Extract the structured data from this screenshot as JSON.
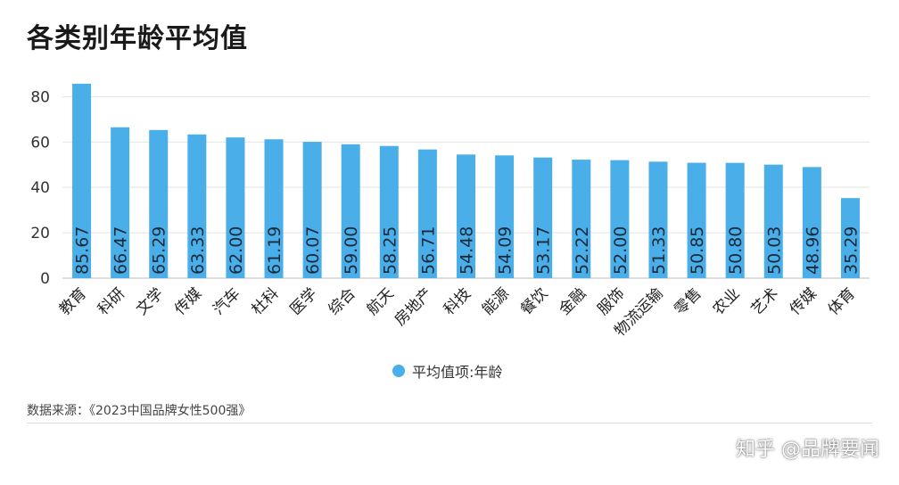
{
  "title": "各类别年龄平均值",
  "legend_label": "平均值项:年龄",
  "source": "数据来源：《2023中国品牌女性500强》",
  "watermark": "知乎 @品牌要闻",
  "colors": {
    "bar": "#4aaee9",
    "grid": "#e3e3e3",
    "axis": "#bdbdbd"
  },
  "chart_data": {
    "type": "bar",
    "categories": [
      "教育",
      "科研",
      "文学",
      "传媒",
      "汽车",
      "杜科",
      "医学",
      "综合",
      "航天",
      "房地产",
      "科技",
      "能源",
      "餐饮",
      "金融",
      "服饰",
      "物流运输",
      "零售",
      "农业",
      "艺术",
      "传媒",
      "体育"
    ],
    "series": [
      {
        "name": "平均值项:年龄",
        "values": [
          85.67,
          66.47,
          65.29,
          63.33,
          62.0,
          61.19,
          60.07,
          59.0,
          58.25,
          56.71,
          54.48,
          54.09,
          53.17,
          52.22,
          52.0,
          51.33,
          50.85,
          50.8,
          50.03,
          48.96,
          35.29
        ],
        "labels": [
          "85.67",
          "66.47",
          "65.29",
          "63.33",
          "62.00",
          "61.19",
          "60.07",
          "59.00",
          "58.25",
          "56.71",
          "54.48",
          "54.09",
          "53.17",
          "52.22",
          "52.00",
          "51.33",
          "50.85",
          "50.80",
          "50.03",
          "48.96",
          "35.29"
        ]
      }
    ],
    "yticks": [
      0,
      20,
      40,
      60,
      80
    ],
    "ylim": [
      0,
      88
    ],
    "grid": true,
    "legend_position": "bottom"
  }
}
